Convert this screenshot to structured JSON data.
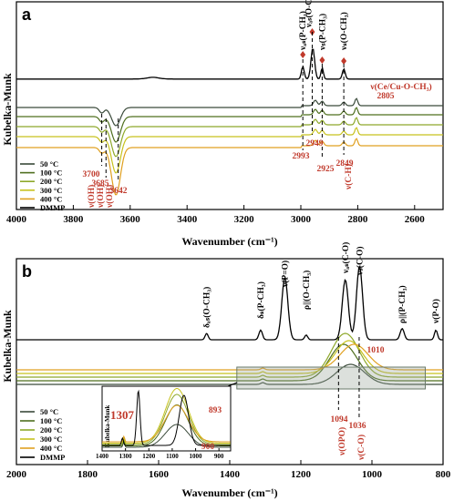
{
  "chart_data": [
    {
      "panel": "a",
      "type": "line",
      "xlabel": "Wavenumber (cm⁻¹)",
      "ylabel": "Kubelka-Munk",
      "xlim": [
        4000,
        2500
      ],
      "x_ticks": [
        4000,
        3800,
        3600,
        3400,
        3200,
        3000,
        2800,
        2600
      ],
      "legend": [
        "50 °C",
        "100 °C",
        "200 °C",
        "300 °C",
        "400 °C",
        "DMMP"
      ],
      "legend_position": "bottom-left",
      "series_colors": [
        "#3a4a3a",
        "#4f6f1f",
        "#8ea82a",
        "#c7c21e",
        "#e0a020",
        "#000000"
      ],
      "peak_labels_top": [
        {
          "label": "νₐₛ(P-CH₃)",
          "x": 2993
        },
        {
          "label": "νₐₛ(O-CH₃)",
          "x": 2960
        },
        {
          "label": "νₛ(P-CH₃)",
          "x": 2925
        },
        {
          "label": "νₛ(O-CH₃)",
          "x": 2849
        }
      ],
      "peak_labels_red": [
        {
          "label": "ν(Ce/Cu-O-CH₃)",
          "x": 2805
        },
        {
          "label": "2805",
          "x": 2805
        },
        {
          "label": "2949",
          "x": 2949
        },
        {
          "label": "2993",
          "x": 2993
        },
        {
          "label": "2925",
          "x": 2925
        },
        {
          "label": "2849",
          "x": 2849
        },
        {
          "label": "ν(C-H)",
          "x": 2849
        },
        {
          "label": "3700",
          "x": 3700
        },
        {
          "label": "3685",
          "x": 3685
        },
        {
          "label": "3642",
          "x": 3642
        },
        {
          "label": "ν(OH)",
          "x": 3700
        },
        {
          "label": "ν(OH)",
          "x": 3685
        },
        {
          "label": "ν(OH)",
          "x": 3642
        }
      ],
      "dmmp_spectrum": {
        "x": [
          4000,
          3520,
          3100,
          3000,
          2993,
          2980,
          2960,
          2940,
          2925,
          2900,
          2860,
          2849,
          2830,
          2700,
          2500
        ],
        "y": [
          0.05,
          0.07,
          0.06,
          0.25,
          0.42,
          0.32,
          0.95,
          0.45,
          0.38,
          0.12,
          0.18,
          0.3,
          0.1,
          0.04,
          0.04
        ]
      }
    },
    {
      "panel": "b",
      "type": "line",
      "xlabel": "Wavenumber (cm⁻¹)",
      "ylabel": "Kubelka-Munk",
      "xlim": [
        2000,
        800
      ],
      "x_ticks": [
        2000,
        1800,
        1600,
        1400,
        1200,
        1000,
        800
      ],
      "legend": [
        "50 °C",
        "100 °C",
        "200 °C",
        "300 °C",
        "400 °C",
        "DMMP"
      ],
      "peak_labels_top": [
        {
          "label": "δₐₛ(O-CH₃)",
          "x": 1465
        },
        {
          "label": "δₛ(P-CH₃)",
          "x": 1313
        },
        {
          "label": "ν(P=O)",
          "x": 1245
        },
        {
          "label": "ρ||(O-CH₃)",
          "x": 1185
        },
        {
          "label": "νₐₛ(C-O)",
          "x": 1075
        },
        {
          "label": "νₛ(C-O)",
          "x": 1035
        },
        {
          "label": "ρ||(P-CH₃)",
          "x": 915
        },
        {
          "label": "ν(P-O)",
          "x": 820
        }
      ],
      "peak_labels_red": [
        {
          "label": "1010",
          "x": 1010
        },
        {
          "label": "1094",
          "x": 1094
        },
        {
          "label": "1036",
          "x": 1036
        },
        {
          "label": "ν(OPO)",
          "x": 1094
        },
        {
          "label": "ν(C-O)",
          "x": 1036
        }
      ],
      "inset": {
        "ylabel": "Kubelka-Munk",
        "x_ticks": [
          1400,
          1300,
          1200,
          1100,
          1000,
          900
        ],
        "labels": [
          "1307",
          "893",
          "900"
        ]
      }
    }
  ]
}
